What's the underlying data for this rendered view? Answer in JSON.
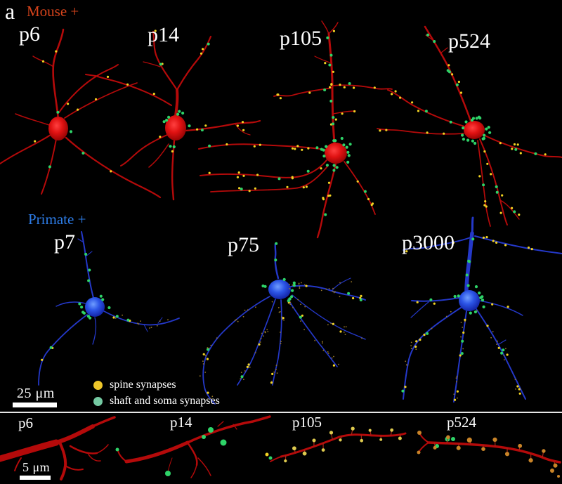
{
  "figure": {
    "panel_label": "a"
  },
  "groups": {
    "mouse": {
      "label": "Mouse +",
      "neurons": [
        {
          "label": "p6"
        },
        {
          "label": "p14"
        },
        {
          "label": "p105"
        },
        {
          "label": "p524"
        }
      ]
    },
    "primate": {
      "label": "Primate +",
      "neurons": [
        {
          "label": "p7"
        },
        {
          "label": "p75"
        },
        {
          "label": "p3000"
        }
      ]
    }
  },
  "legend": {
    "items": [
      {
        "label": "spine synapses",
        "color": "#eec62a"
      },
      {
        "label": "shaft and soma synapses",
        "color": "#74c9a2"
      }
    ]
  },
  "scale_bars": {
    "top": "25 μm",
    "bottom": "5 μm"
  },
  "bottom_strip": {
    "labels": [
      "p6",
      "p14",
      "p105",
      "p524"
    ]
  },
  "colors": {
    "mouse_label": "#d5431b",
    "primate_label": "#2d7ce6",
    "dendrite_red": "#b40a0a",
    "dendrite_blue": "#2438c8",
    "spine_synapse": "#f2d322",
    "shaft_synapse": "#2ed368",
    "strip_ball_pale": "#ddc94e",
    "strip_ball_orange": "#c98428",
    "separator": "#e6e6e6"
  }
}
